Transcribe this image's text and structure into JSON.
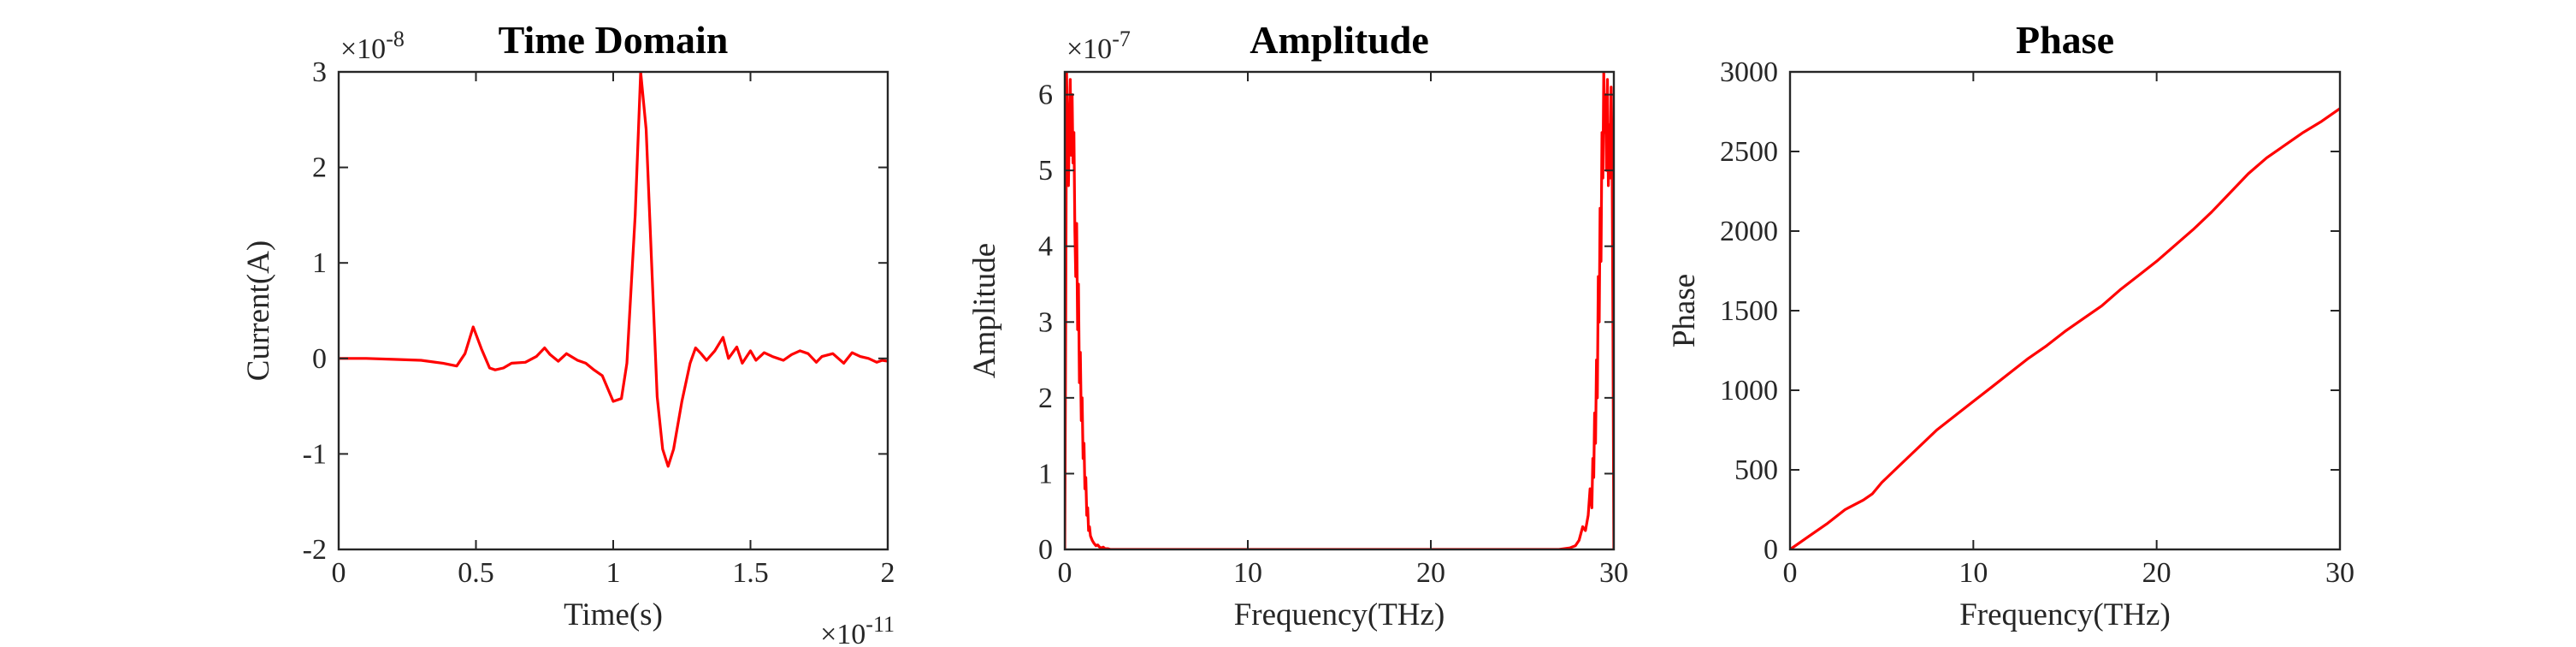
{
  "colors": {
    "line": "#ff0000",
    "axes": "#262626",
    "background": "#ffffff"
  },
  "chart_data": [
    {
      "type": "line",
      "title": "Time Domain",
      "xlabel": "Time(s)",
      "ylabel": "Current(A)",
      "x_exponent": "×10",
      "x_exponent_power": "-11",
      "y_exponent": "×10",
      "y_exponent_power": "-8",
      "xlim": [
        0,
        2
      ],
      "ylim": [
        -2,
        3
      ],
      "xticks": [
        0,
        0.5,
        1,
        1.5,
        2
      ],
      "xtick_labels": [
        "0",
        "0.5",
        "1",
        "1.5",
        "2"
      ],
      "yticks": [
        -2,
        -1,
        0,
        1,
        2,
        3
      ],
      "ytick_labels": [
        "-2",
        "-1",
        "0",
        "1",
        "2",
        "3"
      ],
      "grid": false,
      "series": [
        {
          "x": [
            0,
            0.1,
            0.2,
            0.3,
            0.38,
            0.43,
            0.46,
            0.49,
            0.52,
            0.55,
            0.57,
            0.6,
            0.63,
            0.68,
            0.72,
            0.75,
            0.77,
            0.8,
            0.83,
            0.87,
            0.9,
            0.93,
            0.96,
            1.0,
            1.03,
            1.05,
            1.08,
            1.1,
            1.12,
            1.14,
            1.16,
            1.18,
            1.2,
            1.22,
            1.25,
            1.28,
            1.3,
            1.32,
            1.34,
            1.37,
            1.4,
            1.42,
            1.45,
            1.47,
            1.5,
            1.52,
            1.55,
            1.58,
            1.6,
            1.62,
            1.65,
            1.68,
            1.71,
            1.74,
            1.76,
            1.8,
            1.84,
            1.87,
            1.9,
            1.93,
            1.96,
            1.98,
            2.0
          ],
          "y": [
            0,
            0,
            -0.01,
            -0.02,
            -0.05,
            -0.08,
            0.05,
            0.33,
            0.1,
            -0.1,
            -0.12,
            -0.1,
            -0.05,
            -0.04,
            0.02,
            0.11,
            0.04,
            -0.03,
            0.05,
            -0.02,
            -0.05,
            -0.12,
            -0.18,
            -0.45,
            -0.42,
            -0.05,
            1.5,
            3.0,
            2.4,
            1.0,
            -0.4,
            -0.95,
            -1.13,
            -0.95,
            -0.45,
            -0.05,
            0.11,
            0.05,
            -0.02,
            0.08,
            0.22,
            0.0,
            0.12,
            -0.05,
            0.08,
            -0.02,
            0.06,
            0.02,
            0.0,
            -0.02,
            0.04,
            0.08,
            0.05,
            -0.04,
            0.02,
            0.05,
            -0.05,
            0.06,
            0.02,
            0.0,
            -0.04,
            -0.02,
            -0.03
          ]
        }
      ]
    },
    {
      "type": "line",
      "title": "Amplitude",
      "xlabel": "Frequency(THz)",
      "ylabel": "Amplitude",
      "y_exponent": "×10",
      "y_exponent_power": "-7",
      "xlim": [
        0,
        30
      ],
      "ylim": [
        0,
        6.3
      ],
      "xticks": [
        0,
        10,
        20,
        30
      ],
      "xtick_labels": [
        "0",
        "10",
        "20",
        "30"
      ],
      "yticks": [
        0,
        1,
        2,
        3,
        4,
        5,
        6
      ],
      "ytick_labels": [
        "0",
        "1",
        "2",
        "3",
        "4",
        "5",
        "6"
      ],
      "grid": false,
      "series": [
        {
          "x": [
            0,
            0.05,
            0.1,
            0.15,
            0.2,
            0.25,
            0.3,
            0.35,
            0.4,
            0.45,
            0.5,
            0.55,
            0.6,
            0.65,
            0.7,
            0.75,
            0.8,
            0.85,
            0.9,
            0.95,
            1.0,
            1.05,
            1.1,
            1.15,
            1.2,
            1.25,
            1.3,
            1.35,
            1.4,
            1.5,
            1.6,
            1.7,
            1.8,
            1.9,
            2.0,
            2.1,
            2.2,
            2.35,
            2.5,
            2.7,
            3.0,
            3.5,
            4.0,
            27.0,
            27.3,
            27.6,
            27.9,
            28.1,
            28.3,
            28.45,
            28.6,
            28.7,
            28.8,
            28.85,
            28.9,
            28.95,
            29.0,
            29.05,
            29.1,
            29.15,
            29.2,
            29.25,
            29.3,
            29.35,
            29.4,
            29.45,
            29.5,
            29.55,
            29.6,
            29.65,
            29.7,
            29.75,
            29.8,
            29.85,
            29.9,
            29.95,
            30.0
          ],
          "y": [
            0,
            3.0,
            6.3,
            5.4,
            4.8,
            5.6,
            6.2,
            5.2,
            6.0,
            5.1,
            5.5,
            4.2,
            3.6,
            4.3,
            2.9,
            3.5,
            2.2,
            2.6,
            1.7,
            2.0,
            1.2,
            1.4,
            0.8,
            0.95,
            0.45,
            0.55,
            0.25,
            0.3,
            0.18,
            0.12,
            0.08,
            0.05,
            0.06,
            0.03,
            0.02,
            0.03,
            0.01,
            0.01,
            0.0,
            0.0,
            0.0,
            0.0,
            0.0,
            0.0,
            0.01,
            0.02,
            0.05,
            0.12,
            0.3,
            0.25,
            0.45,
            0.8,
            0.55,
            1.2,
            0.95,
            1.8,
            1.4,
            2.5,
            2.0,
            3.6,
            3.0,
            4.5,
            3.8,
            5.5,
            4.9,
            6.3,
            5.5,
            6.0,
            5.0,
            6.2,
            4.8,
            5.6,
            4.9,
            6.1,
            5.3,
            3.0,
            0
          ]
        }
      ]
    },
    {
      "type": "line",
      "title": "Phase",
      "xlabel": "Frequency(THz)",
      "ylabel": "Phase",
      "xlim": [
        0,
        30
      ],
      "ylim": [
        0,
        3000
      ],
      "xticks": [
        0,
        10,
        20,
        30
      ],
      "xtick_labels": [
        "0",
        "10",
        "20",
        "30"
      ],
      "yticks": [
        0,
        500,
        1000,
        1500,
        2000,
        2500,
        3000
      ],
      "ytick_labels": [
        "0",
        "500",
        "1000",
        "1500",
        "2000",
        "2500",
        "3000"
      ],
      "grid": false,
      "series": [
        {
          "x": [
            0,
            1,
            2,
            3,
            4,
            4.5,
            5,
            6,
            7,
            8,
            9,
            10,
            11,
            12,
            13,
            14,
            15,
            16,
            17,
            18,
            19,
            20,
            21,
            22,
            23,
            24,
            25,
            26,
            27,
            28,
            29,
            30
          ],
          "y": [
            0,
            80,
            160,
            250,
            310,
            350,
            420,
            530,
            640,
            750,
            840,
            930,
            1020,
            1110,
            1200,
            1280,
            1370,
            1450,
            1530,
            1630,
            1720,
            1810,
            1910,
            2010,
            2120,
            2240,
            2360,
            2460,
            2540,
            2620,
            2690,
            2770
          ]
        }
      ]
    }
  ]
}
